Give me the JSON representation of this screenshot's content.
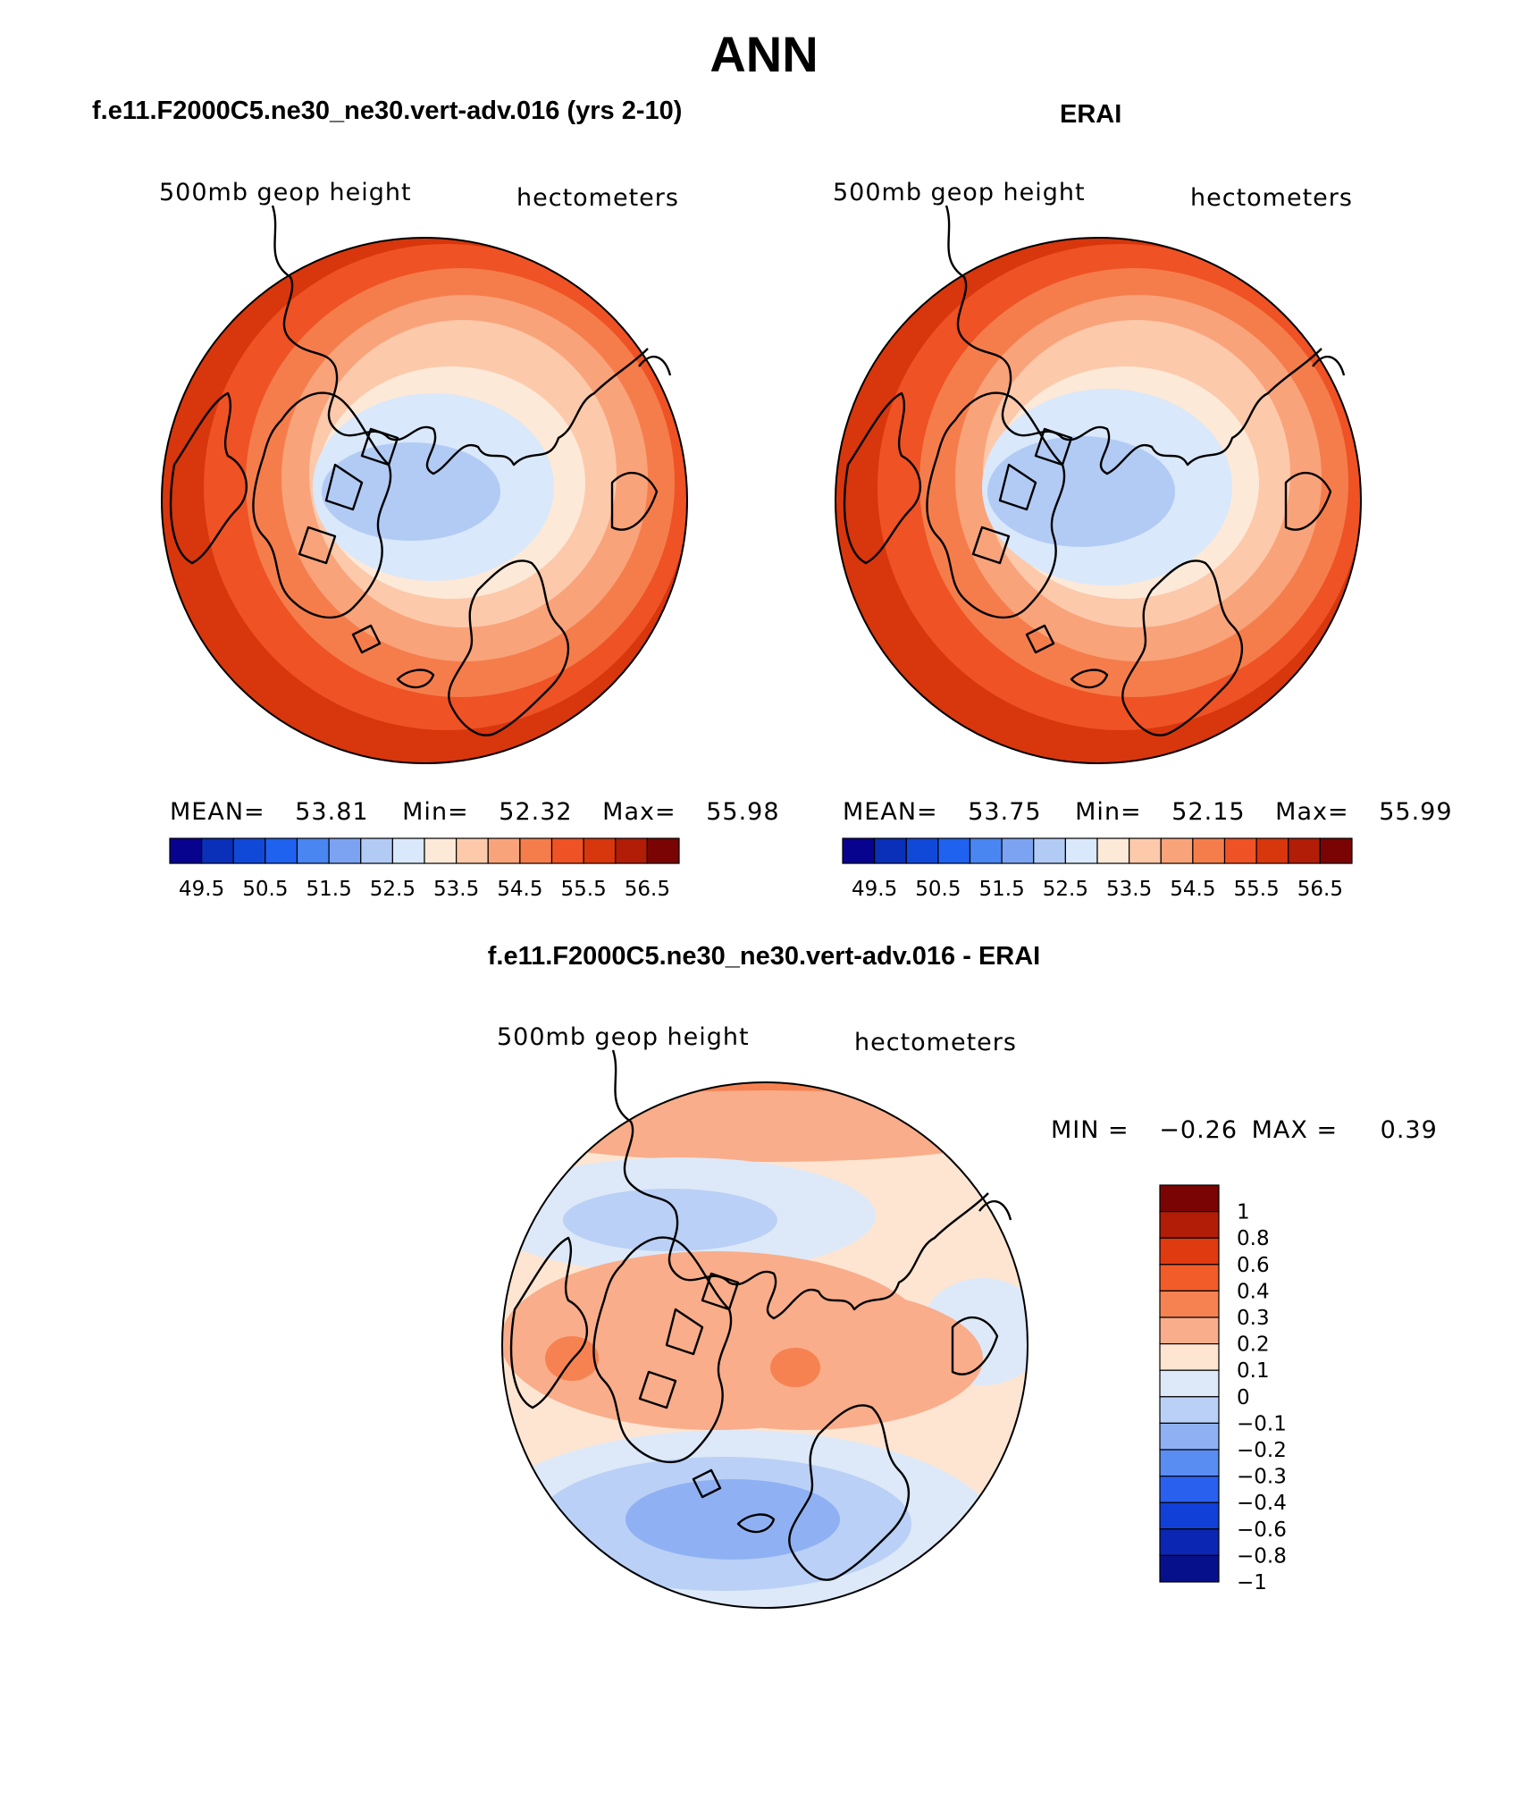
{
  "title": "ANN",
  "panels": [
    {
      "heading": "f.e11.F2000C5.ne30_ne30.vert-adv.016 (yrs 2-10)",
      "variable": "500mb  geop  height",
      "units": "hectometers",
      "stats": {
        "mean_label": "MEAN=",
        "mean": "53.81",
        "min_label": "Min=",
        "min": "52.32",
        "max_label": "Max=",
        "max": "55.98"
      }
    },
    {
      "heading": "ERAI",
      "variable": "500mb  geop  height",
      "units": "hectometers",
      "stats": {
        "mean_label": "MEAN=",
        "mean": "53.75",
        "min_label": "Min=",
        "min": "52.15",
        "max_label": "Max=",
        "max": "55.99"
      }
    },
    {
      "heading": "f.e11.F2000C5.ne30_ne30.vert-adv.016 - ERAI",
      "variable": "500mb  geop  height",
      "units": "hectometers",
      "minmax": {
        "min_label": "MIN =",
        "min": "−0.26",
        "max_label": "MAX =",
        "max": "0.39"
      }
    }
  ],
  "colorbar_abs": {
    "colors": [
      "#08038f",
      "#0a2fb8",
      "#1048d8",
      "#1f62f0",
      "#4a86f2",
      "#7ba3f2",
      "#b2cbf5",
      "#d9e8fa",
      "#fde9d8",
      "#fcc9ab",
      "#f9a37a",
      "#f57d4c",
      "#ef5224",
      "#d8360c",
      "#b11d06",
      "#7a0404"
    ],
    "labels": [
      "49.5",
      "50.5",
      "51.5",
      "52.5",
      "53.5",
      "54.5",
      "55.5",
      "56.5"
    ]
  },
  "colorbar_diff": {
    "colors": [
      "#7a0404",
      "#b11d06",
      "#df3a10",
      "#f15c28",
      "#f68252",
      "#f9ad8a",
      "#fde5d2",
      "#dde9f8",
      "#bad0f6",
      "#8fb1f3",
      "#5a8df1",
      "#2a60ee",
      "#1140d8",
      "#0a26b2",
      "#06108a"
    ],
    "labels": [
      "1",
      "0.8",
      "0.6",
      "0.4",
      "0.3",
      "0.2",
      "0.1",
      "0",
      "−0.1",
      "−0.2",
      "−0.3",
      "−0.4",
      "−0.6",
      "−0.8",
      "−1"
    ]
  }
}
